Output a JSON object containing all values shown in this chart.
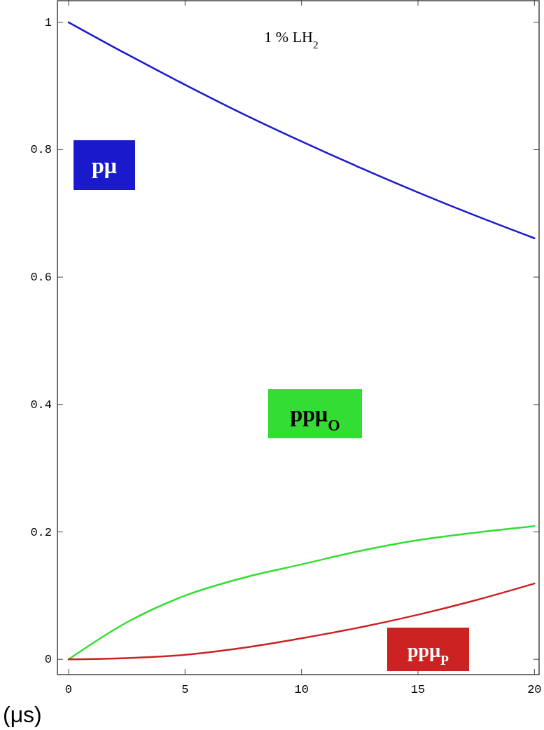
{
  "chart_data": {
    "type": "line",
    "title": "1 % LH$_{2}$",
    "xlabel": "(μs)",
    "x": [
      0,
      2.5,
      5,
      7.5,
      10,
      12.5,
      15,
      17.5,
      20
    ],
    "series": [
      {
        "name": "pμ",
        "color": "#1a1acc",
        "values": [
          1,
          0.95,
          0.902,
          0.856,
          0.813,
          0.772,
          0.733,
          0.696,
          0.661
        ]
      },
      {
        "name": "ppμ$_{O}$",
        "color": "#33dd33",
        "values": [
          0,
          0.058,
          0.1,
          0.128,
          0.149,
          0.17,
          0.187,
          0.199,
          0.209
        ]
      },
      {
        "name": "ppμ$_{P}$",
        "color": "#cc2222",
        "values": [
          0,
          0.002,
          0.007,
          0.018,
          0.033,
          0.05,
          0.07,
          0.093,
          0.119
        ]
      }
    ],
    "xlim": [
      -0.48,
      20.2
    ],
    "ylim": [
      -0.024,
      1.035
    ],
    "xticks": [
      0,
      5,
      10,
      15,
      20
    ],
    "yticks": [
      0,
      {
        "value": 0.2,
        "label": "0.2"
      },
      {
        "value": 0.4,
        "label": "0.4"
      },
      {
        "value": 0.6,
        "label": "0.6"
      },
      {
        "value": 0.8,
        "label": "0.8"
      },
      1
    ],
    "grid": false,
    "marker": "none",
    "line_style": "solid"
  }
}
